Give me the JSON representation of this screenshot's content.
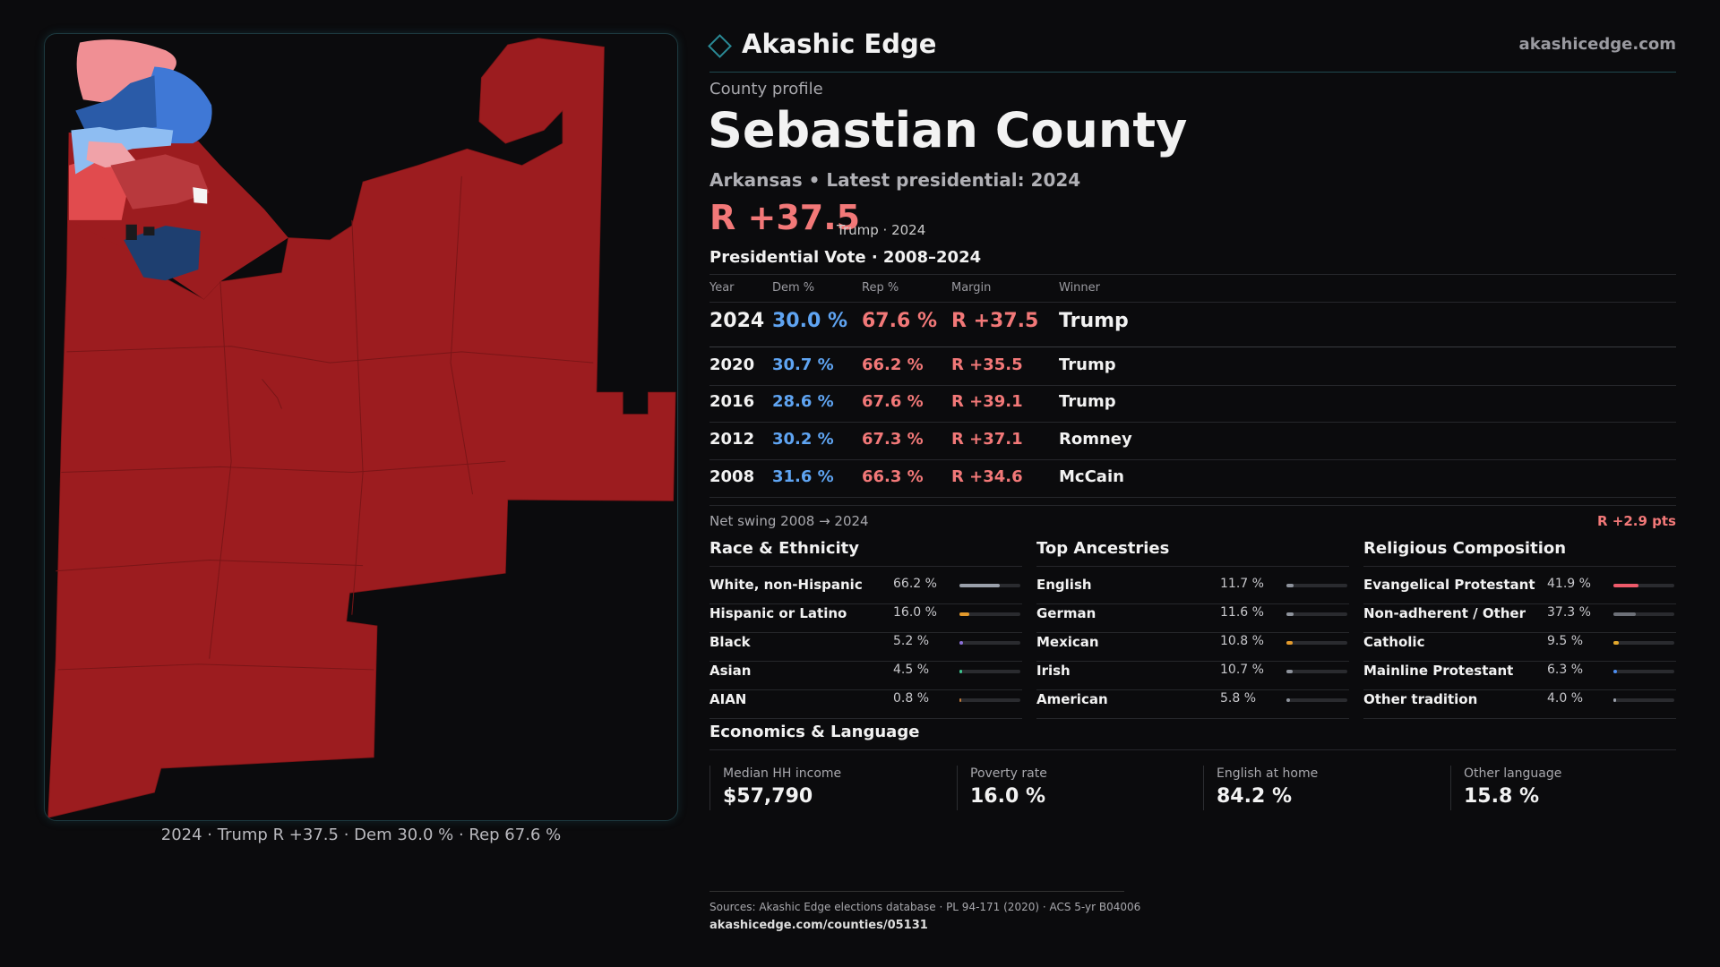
{
  "header": {
    "brand": "Akashic Edge",
    "site": "akashicedge.com"
  },
  "profile": {
    "kicker": "County profile",
    "title": "Sebastian County",
    "subtitle": "Arkansas • Latest presidential: 2024",
    "margin": "R +37.5",
    "margin_note": "Trump · 2024"
  },
  "vote_table": {
    "title": "Presidential Vote · 2008–2024",
    "columns": [
      "Year",
      "Dem %",
      "Rep %",
      "Margin",
      "Winner"
    ],
    "rows": [
      [
        "2024",
        "30.0 %",
        "67.6 %",
        "R +37.5",
        "Trump"
      ],
      [
        "2020",
        "30.7 %",
        "66.2 %",
        "R +35.5",
        "Trump"
      ],
      [
        "2016",
        "28.6 %",
        "67.6 %",
        "R +39.1",
        "Trump"
      ],
      [
        "2012",
        "30.2 %",
        "67.3 %",
        "R +37.1",
        "Romney"
      ],
      [
        "2008",
        "31.6 %",
        "66.3 %",
        "R +34.6",
        "McCain"
      ]
    ]
  },
  "swing": {
    "label": "Net swing 2008 → 2024",
    "value": "R +2.9 pts"
  },
  "demographics": [
    {
      "title": "Race & Ethnicity",
      "items": [
        {
          "label": "White, non-Hispanic",
          "value": 66.2,
          "value_label": "66.2 %",
          "color": "#9aa0aa"
        },
        {
          "label": "Hispanic or Latino",
          "value": 16.0,
          "value_label": "16.0 %",
          "color": "#e39a2c"
        },
        {
          "label": "Black",
          "value": 5.2,
          "value_label": "5.2 %",
          "color": "#8b6fd8"
        },
        {
          "label": "Asian",
          "value": 4.5,
          "value_label": "4.5 %",
          "color": "#3cc48e"
        },
        {
          "label": "AIAN",
          "value": 0.8,
          "value_label": "0.8 %",
          "color": "#c07a3a"
        }
      ]
    },
    {
      "title": "Top Ancestries",
      "items": [
        {
          "label": "English",
          "value": 11.7,
          "value_label": "11.7 %",
          "color": "#8e939c"
        },
        {
          "label": "German",
          "value": 11.6,
          "value_label": "11.6 %",
          "color": "#8e939c"
        },
        {
          "label": "Mexican",
          "value": 10.8,
          "value_label": "10.8 %",
          "color": "#e39a2c"
        },
        {
          "label": "Irish",
          "value": 10.7,
          "value_label": "10.7 %",
          "color": "#8e939c"
        },
        {
          "label": "American",
          "value": 5.8,
          "value_label": "5.8 %",
          "color": "#8e939c"
        }
      ]
    },
    {
      "title": "Religious Composition",
      "items": [
        {
          "label": "Evangelical Protestant",
          "value": 41.9,
          "value_label": "41.9 %",
          "color": "#ef5a6a"
        },
        {
          "label": "Non-adherent / Other",
          "value": 37.3,
          "value_label": "37.3 %",
          "color": "#6d7078"
        },
        {
          "label": "Catholic",
          "value": 9.5,
          "value_label": "9.5 %",
          "color": "#e3a82c"
        },
        {
          "label": "Mainline Protestant",
          "value": 6.3,
          "value_label": "6.3 %",
          "color": "#4d8ef0"
        },
        {
          "label": "Other tradition",
          "value": 4.0,
          "value_label": "4.0 %",
          "color": "#9aa0aa"
        }
      ]
    }
  ],
  "economics": {
    "title": "Economics & Language",
    "cards": [
      {
        "label": "Median HH income",
        "value": "$57,790"
      },
      {
        "label": "Poverty rate",
        "value": "16.0 %"
      },
      {
        "label": "English at home",
        "value": "84.2 %"
      },
      {
        "label": "Other language",
        "value": "15.8 %"
      }
    ]
  },
  "map_caption": "2024 · Trump R +37.5 · Dem 30.0 % · Rep 67.6 %",
  "footer": {
    "sources": "Sources: Akashic Edge elections database · PL 94-171 (2020) · ACS 5-yr B04006",
    "url": "akashicedge.com/counties/05131"
  }
}
